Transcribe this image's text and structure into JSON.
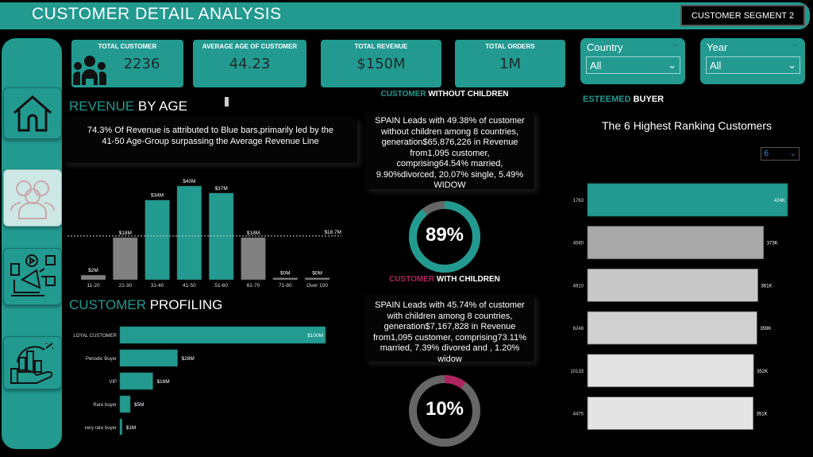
{
  "header": {
    "title": "CUSTOMER DETAIL ANALYSIS",
    "segment_button": "CUSTOMER SEGMENT 2"
  },
  "sidebar": {
    "items": [
      {
        "icon": "home-icon"
      },
      {
        "icon": "customers-icon",
        "active": true
      },
      {
        "icon": "marketing-icon"
      },
      {
        "icon": "sales-growth-icon"
      }
    ]
  },
  "kpis": [
    {
      "label": "TOTAL CUSTOMER",
      "value": "2236",
      "icon": "people-icon"
    },
    {
      "label": "AVERAGE AGE OF CUSTOMER",
      "value": "44.23"
    },
    {
      "label": "TOTAL REVENUE",
      "value": "$150M"
    },
    {
      "label": "TOTAL ORDERS",
      "value": "1M"
    }
  ],
  "slicers": [
    {
      "label": "Country",
      "value": "All"
    },
    {
      "label": "Year",
      "value": "All"
    }
  ],
  "colors": {
    "accent": "#229a90",
    "highlight": "#b0235f",
    "grey": "#808080"
  },
  "revenue_by_age": {
    "title_a": "REVENUE",
    "title_b": " BY AGE",
    "note": "74.3% Of Revenue is attributed to Blue bars,primarily led by the 41-50 Age-Group surpassing the Average Revenue Line"
  },
  "customer_profiling": {
    "title_a": "CUSTOMER",
    "title_b": " PROFILING"
  },
  "without_children": {
    "title_a": "CUSTOMER",
    "title_b": " WITHOUT CHILDREN",
    "text": "SPAIN Leads with 49.38% of customer without children among 8 countries, generation$65,876,226 in Revenue from1,095 customer, comprising64.54% married, 9.90%divorced, 20.07% single, 5.49% WIDOW",
    "percent": 89,
    "label": "89%"
  },
  "with_children": {
    "title_a": "CUSTOMER",
    "title_b": " WITH CHILDREN",
    "text": "SPAIN Leads with 45.74% of customer with children among 8 countries, generation$7,167,828 in Revenue from1,095 customer, comprising73.11% married, 7.39% divored and , 1.20% widow",
    "percent": 10,
    "label": "10%"
  },
  "esteemed": {
    "title_a": "ESTEEMED",
    "title_b": " BUYER",
    "chart_title": "The 6 Highest Ranking Customers",
    "topn_value": "6"
  },
  "chart_data": [
    {
      "type": "bar",
      "name": "revenue-by-age",
      "categories": [
        "11-20",
        "21-30",
        "31-40",
        "41-50",
        "51-60",
        "61-70",
        "71-80",
        "Over 100"
      ],
      "values": [
        2,
        18,
        34,
        40,
        37,
        18,
        0,
        0
      ],
      "labels": [
        "$2M",
        "$18M",
        "$34M",
        "$40M",
        "$37M",
        "$18M",
        "$0M",
        "$0M"
      ],
      "highlighted": [
        false,
        false,
        true,
        true,
        true,
        false,
        false,
        false
      ],
      "unit": "$M",
      "reference_line": {
        "value": 18.7,
        "label": "$18.7M"
      }
    },
    {
      "type": "bar",
      "orientation": "horizontal",
      "name": "customer-profiling",
      "categories": [
        "LOYAL CUSTOMER",
        "Periodic Buyer",
        "VIP",
        "Rare buyer",
        "very rare buyer"
      ],
      "values": [
        100,
        28,
        16,
        5,
        1
      ],
      "labels": [
        "$100M",
        "$28M",
        "$16M",
        "$5M",
        "$1M"
      ],
      "unit": "$M"
    },
    {
      "type": "bar",
      "orientation": "horizontal",
      "name": "top-customers",
      "categories": [
        "1763",
        "4580",
        "4910",
        "6248",
        "10133",
        "4475"
      ],
      "values": [
        424,
        373,
        361,
        359,
        352,
        351
      ],
      "labels": [
        "424K",
        "373K",
        "361K",
        "359K",
        "352K",
        "351K"
      ],
      "unit": "K",
      "bar_colors": [
        "#229a90",
        "#a9a9a9",
        "#c8c8c8",
        "#d0d0d0",
        "#e2e2e2",
        "#e4e4e4"
      ]
    }
  ]
}
